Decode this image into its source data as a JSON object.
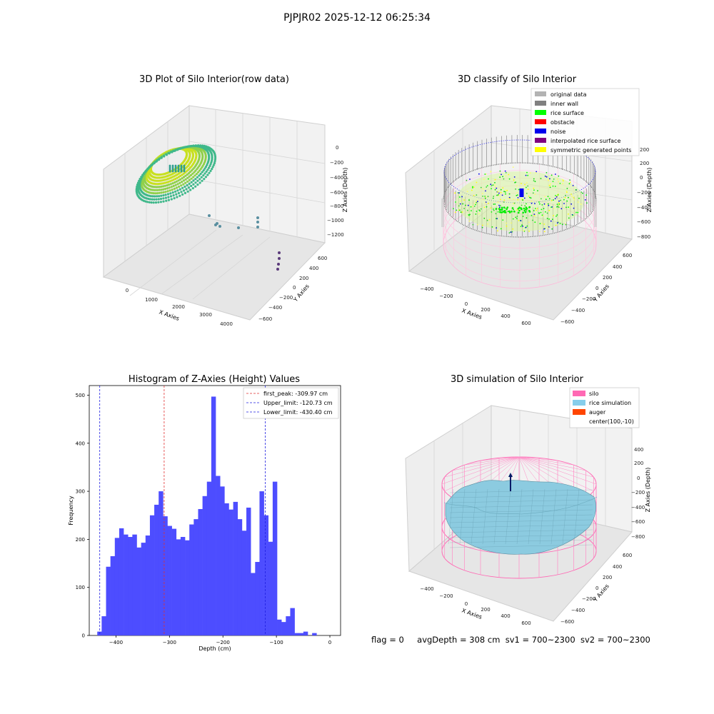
{
  "suptitle": "PJPJR02 2025-12-12 06:25:34",
  "footer": {
    "flag": "flag = 0",
    "avg": "avgDepth = 308 cm",
    "sv1": "sv1 = 700~2300",
    "sv2": "sv2 = 700~2300"
  },
  "chart_data": [
    {
      "type": "scatter",
      "title": "3D Plot of Silo Interior(row data)",
      "xlabel": "X Axies",
      "ylabel": "Y Axies",
      "zlabel": "Z Axies (Depth)",
      "x_ticks": [
        "0",
        "1000",
        "2000",
        "3000",
        "4000"
      ],
      "y_ticks": [
        "600",
        "400",
        "200",
        "0",
        "−200",
        "−400",
        "−600"
      ],
      "z_ticks": [
        "0",
        "−200",
        "−400",
        "−600",
        "−800",
        "−1000",
        "−1200"
      ],
      "colors": {
        "points_main": "#a6d72a",
        "points_outlier": "#5a8fa0",
        "points_far": "#5a3a7a"
      }
    },
    {
      "type": "scatter",
      "title": "3D classify of Silo Interior",
      "xlabel": "X Axies",
      "ylabel": "Y Axies",
      "zlabel": "Z Axies (Depth)",
      "x_ticks": [
        "−400",
        "−200",
        "0",
        "200",
        "400",
        "600"
      ],
      "y_ticks": [
        "600",
        "400",
        "200",
        "0",
        "−200",
        "−400",
        "−600"
      ],
      "z_ticks": [
        "200",
        "0",
        "−200",
        "−400",
        "−600",
        "−800"
      ],
      "legend_position": "top-right",
      "legend": [
        {
          "label": "original data",
          "color": "#b3b3b3"
        },
        {
          "label": "inner wall",
          "color": "#808080"
        },
        {
          "label": "rice surface",
          "color": "#00ff00"
        },
        {
          "label": "obstacle",
          "color": "#ff0000"
        },
        {
          "label": "noise",
          "color": "#0000ee"
        },
        {
          "label": "interpolated rice surface",
          "color": "#800080"
        },
        {
          "label": "symmetric generated points",
          "color": "#ffff00"
        }
      ]
    },
    {
      "type": "bar",
      "title": "Histogram of Z-Axies (Height) Values",
      "xlabel": "Depth (cm)",
      "ylabel": "Frequency",
      "xlim": [
        -450,
        20
      ],
      "ylim": [
        0,
        520
      ],
      "x_ticks": [
        -400,
        -300,
        -200,
        -100,
        0
      ],
      "y_ticks": [
        0,
        100,
        200,
        300,
        400,
        500
      ],
      "bin_start": -435,
      "bin_width": 8.2,
      "values": [
        8,
        40,
        143,
        165,
        203,
        223,
        210,
        205,
        210,
        183,
        193,
        208,
        250,
        272,
        300,
        248,
        228,
        222,
        200,
        205,
        198,
        231,
        242,
        263,
        290,
        320,
        497,
        332,
        310,
        275,
        262,
        278,
        242,
        218,
        266,
        130,
        153,
        300,
        250,
        195,
        320,
        33,
        28,
        40,
        57,
        5,
        5,
        8,
        0,
        5
      ],
      "bar_color": "#4d4dff",
      "vlines": [
        {
          "label": "first_peak: -309.97 cm",
          "value": -309.97,
          "color": "#e03030"
        },
        {
          "label": "Upper_limit: -120.73 cm",
          "value": -120.73,
          "color": "#2020e0"
        },
        {
          "label": "Lower_limit: -430.40 cm",
          "value": -430.4,
          "color": "#2020e0"
        }
      ],
      "legend_position": "top-right"
    },
    {
      "type": "surface",
      "title": "3D simulation of Silo Interior",
      "xlabel": "X Axies",
      "ylabel": "Y Axies",
      "zlabel": "Z Axies (Depth)",
      "x_ticks": [
        "−400",
        "−200",
        "0",
        "200",
        "400",
        "600"
      ],
      "y_ticks": [
        "600",
        "400",
        "200",
        "0",
        "−200",
        "−400",
        "−600"
      ],
      "z_ticks": [
        "400",
        "200",
        "0",
        "−200",
        "−400",
        "−600",
        "−800"
      ],
      "legend_position": "top-right",
      "legend": [
        {
          "label": "silo",
          "color": "#ff69b4"
        },
        {
          "label": "rice simulation",
          "color": "#87ceeb"
        },
        {
          "label": "auger",
          "color": "#ff4500"
        },
        {
          "label": "center(100,-10)",
          "color": "#ffffff"
        }
      ]
    }
  ]
}
